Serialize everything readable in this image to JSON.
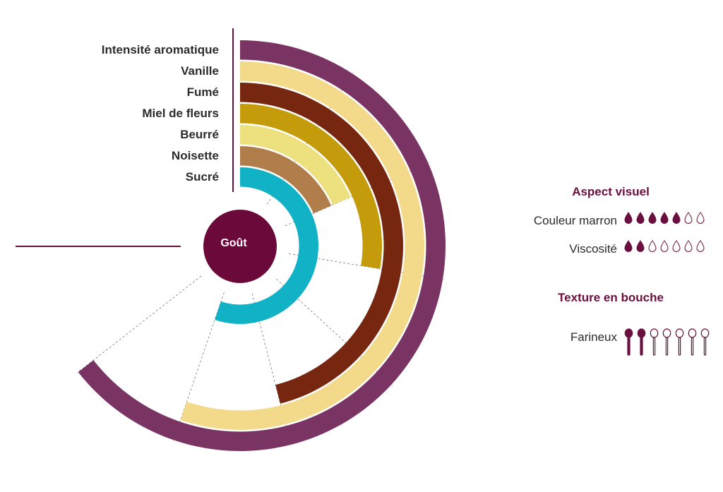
{
  "chart_data": {
    "type": "radial-bar",
    "center_label": "Goût",
    "value_max": 7,
    "series": [
      {
        "label": "Intensité aromatique",
        "value": 7,
        "color": "#7a3464"
      },
      {
        "label": "Vanille",
        "value": 6,
        "color": "#f3d98a"
      },
      {
        "label": "Fumé",
        "value": 5,
        "color": "#77260f"
      },
      {
        "label": "Miel de fleurs",
        "value": 3,
        "color": "#c49b0b"
      },
      {
        "label": "Beurré",
        "value": 2,
        "color": "#ede07e"
      },
      {
        "label": "Noisette",
        "value": 2,
        "color": "#b07d4b"
      },
      {
        "label": "Sucré",
        "value": 6,
        "color": "#11b2c6"
      }
    ]
  },
  "aspect_visuel": {
    "title": "Aspect visuel",
    "items": [
      {
        "label": "Couleur marron",
        "value": 5,
        "max": 7,
        "icon": "drop-icon"
      },
      {
        "label": "Viscosité",
        "value": 2,
        "max": 7,
        "icon": "drop-icon"
      }
    ]
  },
  "texture": {
    "title": "Texture en bouche",
    "items": [
      {
        "label": "Farineux",
        "value": 2,
        "max": 7,
        "icon": "spoon-icon"
      }
    ]
  },
  "colors": {
    "accent": "#6b0f3e",
    "text": "#2b2b2b",
    "center": "#6b0a3a"
  }
}
